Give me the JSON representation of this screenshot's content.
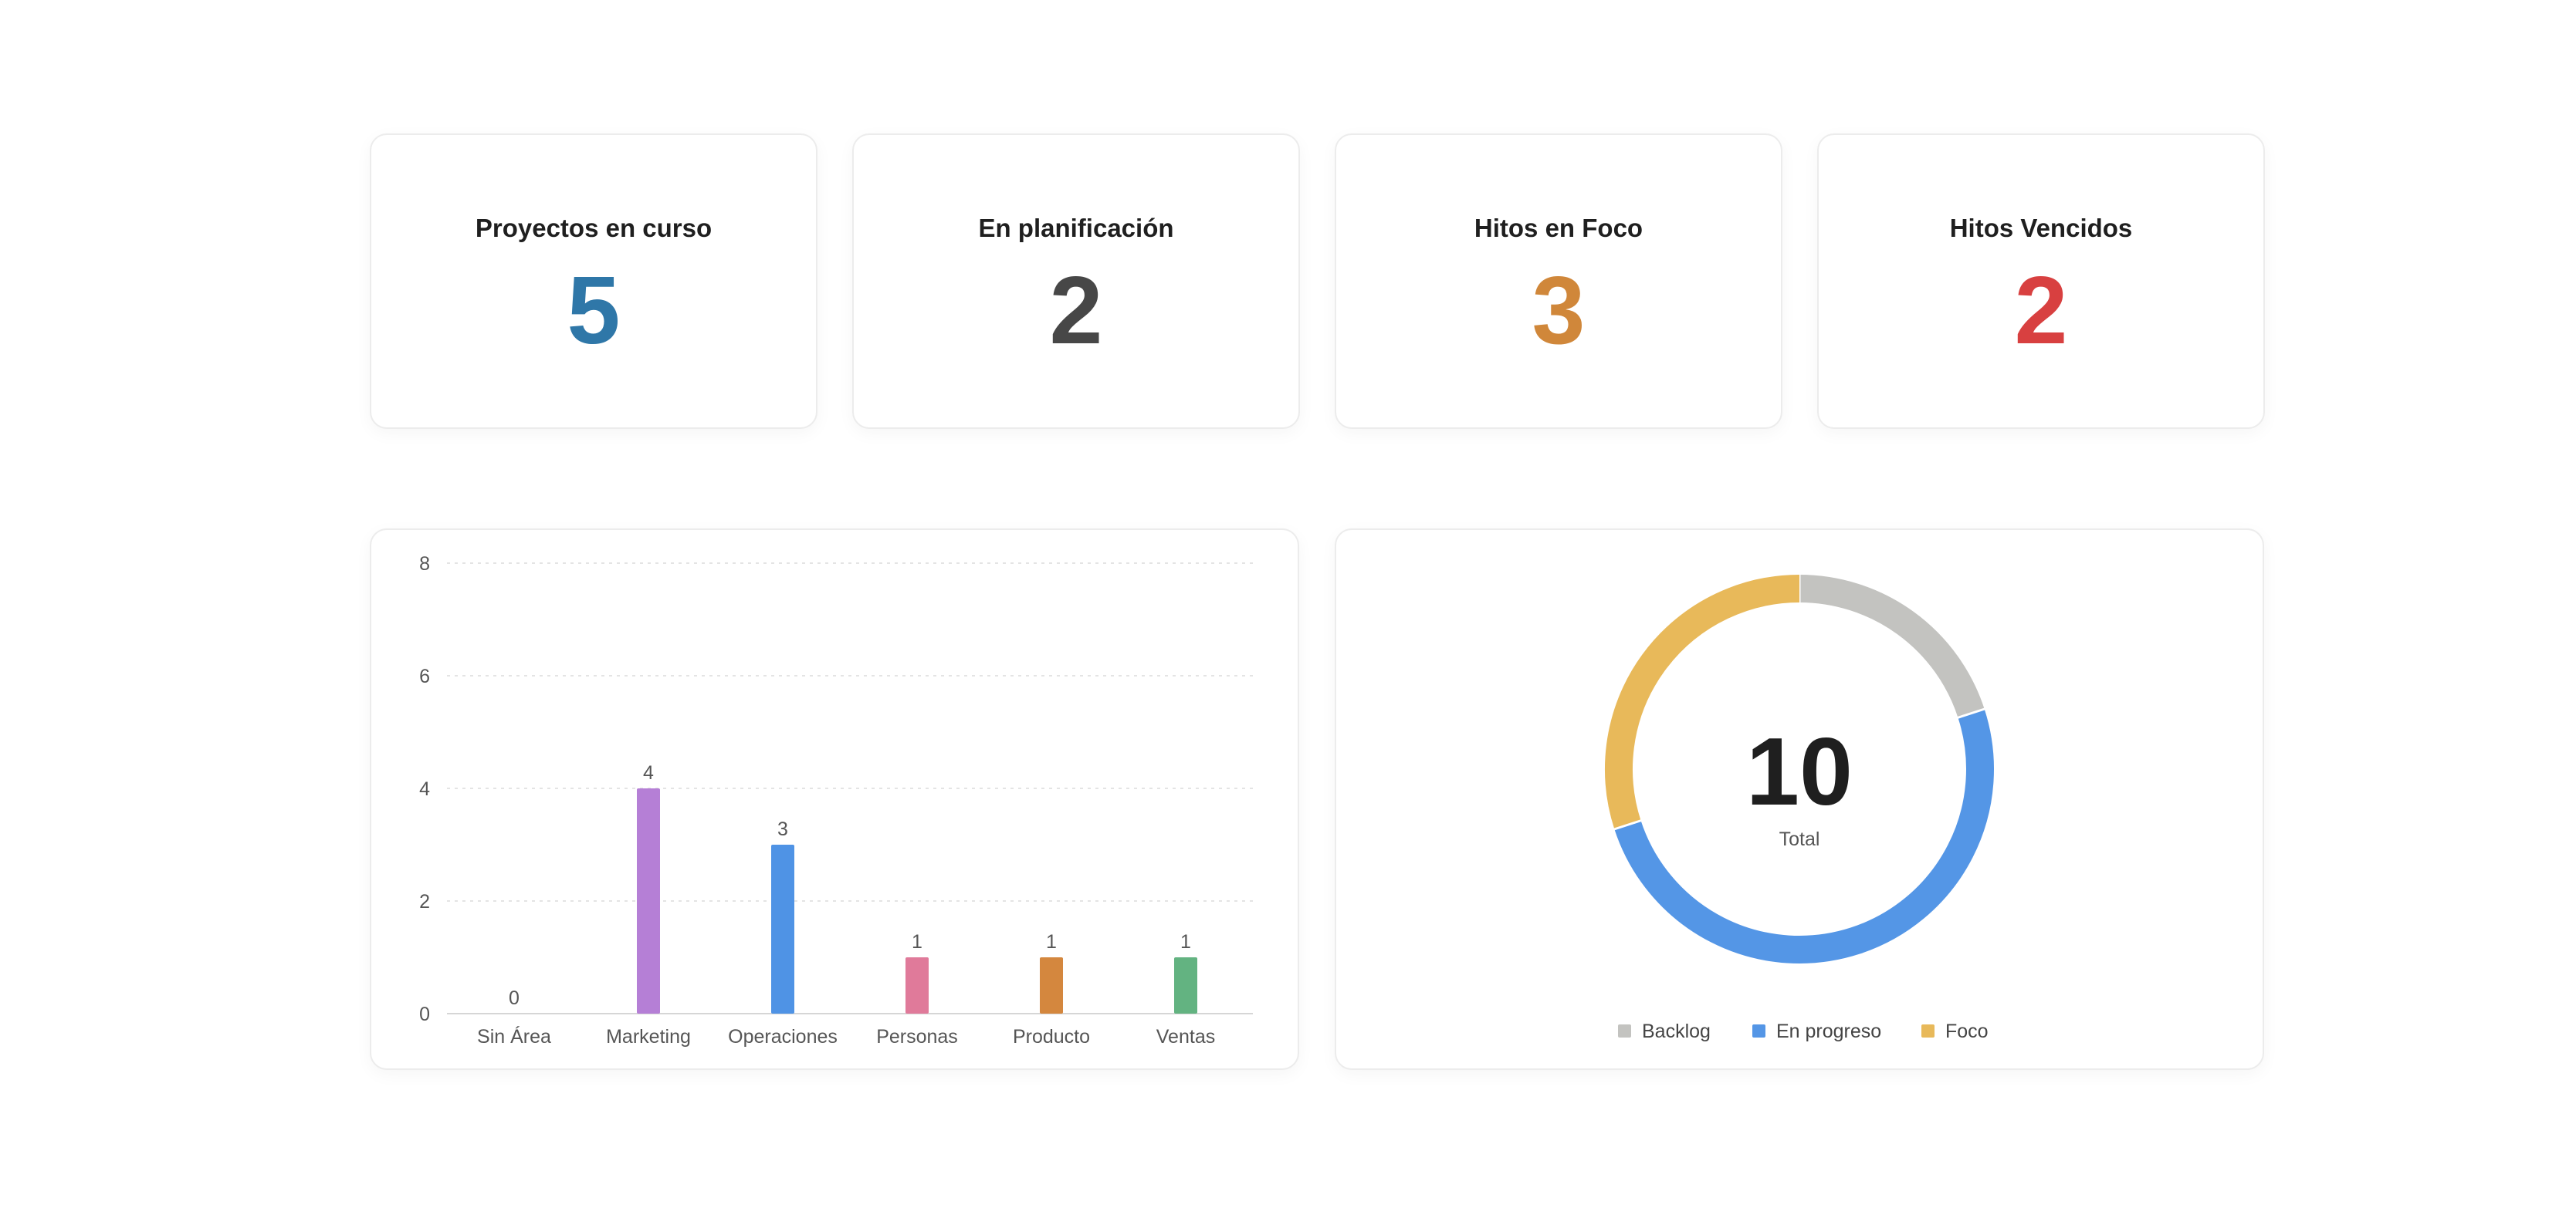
{
  "stats": [
    {
      "label": "Proyectos en curso",
      "value": "5",
      "color": "#2f77a8"
    },
    {
      "label": "En planificación",
      "value": "2",
      "color": "#474747"
    },
    {
      "label": "Hitos en Foco",
      "value": "3",
      "color": "#d0873a"
    },
    {
      "label": "Hitos Vencidos",
      "value": "2",
      "color": "#d84040"
    }
  ],
  "chart_data": [
    {
      "type": "bar",
      "categories": [
        "Sin Área",
        "Marketing",
        "Operaciones",
        "Personas",
        "Producto",
        "Ventas"
      ],
      "values": [
        0,
        4,
        3,
        1,
        1,
        1
      ],
      "colors": [
        "#9a9a9a",
        "#b57fd6",
        "#4f93e5",
        "#e07a9a",
        "#d4873e",
        "#63b381"
      ],
      "ylim": [
        0,
        8
      ],
      "yticks": [
        "0",
        "2",
        "4",
        "6",
        "8"
      ],
      "grid": true
    },
    {
      "type": "pie",
      "labels": [
        "Backlog",
        "En progreso",
        "Foco"
      ],
      "values": [
        2,
        5,
        3
      ],
      "colors": [
        "#c3c3c0",
        "#5496e6",
        "#e8b95a"
      ],
      "center_value": "10",
      "center_label": "Total",
      "legend": "bottom"
    }
  ]
}
